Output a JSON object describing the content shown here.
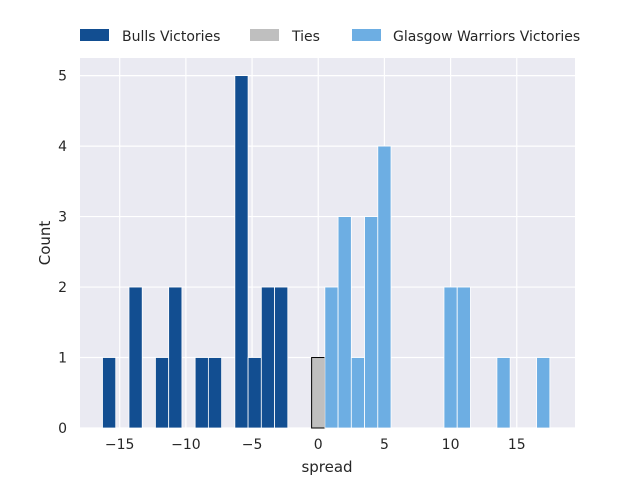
{
  "chart_data": {
    "type": "bar",
    "xlabel": "spread",
    "ylabel": "Count",
    "xlim": [
      -18,
      19.4
    ],
    "ylim": [
      0,
      5.25
    ],
    "xticks": [
      -15,
      -10,
      -5,
      0,
      5,
      10,
      15
    ],
    "xtick_labels": [
      "−15",
      "−10",
      "−5",
      "0",
      "5",
      "10",
      "15"
    ],
    "yticks": [
      0,
      1,
      2,
      3,
      4,
      5
    ],
    "ytick_labels": [
      "0",
      "1",
      "2",
      "3",
      "4",
      "5"
    ],
    "grid": true,
    "legend_position": "top",
    "bin_width": 1.0,
    "series": [
      {
        "name": "Bulls Victories",
        "color": "#124e91",
        "bins": [
          {
            "x0": -16.3,
            "count": 1
          },
          {
            "x0": -14.3,
            "count": 2
          },
          {
            "x0": -12.3,
            "count": 1
          },
          {
            "x0": -11.3,
            "count": 2
          },
          {
            "x0": -9.3,
            "count": 1
          },
          {
            "x0": -8.3,
            "count": 1
          },
          {
            "x0": -6.3,
            "count": 5
          },
          {
            "x0": -5.3,
            "count": 1
          },
          {
            "x0": -4.3,
            "count": 2
          },
          {
            "x0": -3.3,
            "count": 2
          }
        ]
      },
      {
        "name": "Ties",
        "color": "#bfbfbf",
        "bins": [
          {
            "x0": -0.5,
            "count": 1
          }
        ]
      },
      {
        "name": "Glasgow Warriors Victories",
        "color": "#6daee3",
        "bins": [
          {
            "x0": 0.5,
            "count": 2
          },
          {
            "x0": 1.5,
            "count": 3
          },
          {
            "x0": 2.5,
            "count": 1
          },
          {
            "x0": 3.5,
            "count": 3
          },
          {
            "x0": 4.5,
            "count": 4
          },
          {
            "x0": 9.5,
            "count": 2
          },
          {
            "x0": 10.5,
            "count": 2
          },
          {
            "x0": 13.5,
            "count": 1
          },
          {
            "x0": 16.5,
            "count": 1
          }
        ]
      }
    ]
  }
}
